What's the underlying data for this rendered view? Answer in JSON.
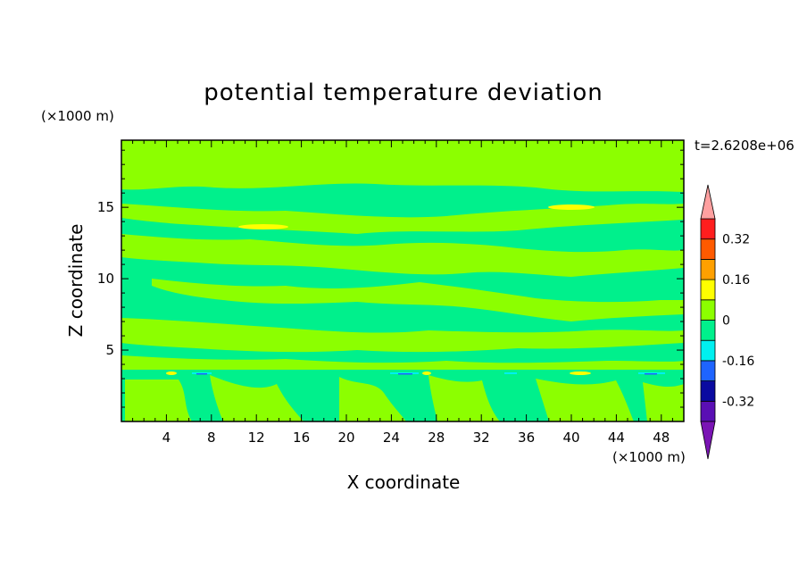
{
  "chart_data": {
    "type": "heatmap",
    "title": "potential temperature deviation",
    "xlabel": "X coordinate",
    "ylabel": "Z coordinate",
    "x_unit": "(×1000 m)",
    "y_unit": "(×1000 m)",
    "time_label": "t=2.6208e+06",
    "xlim": [
      0,
      50
    ],
    "ylim": [
      0,
      19.7
    ],
    "x_ticks": [
      4,
      8,
      12,
      16,
      20,
      24,
      28,
      32,
      36,
      40,
      44,
      48
    ],
    "y_ticks": [
      5,
      10,
      15
    ],
    "background_level": 0,
    "colorbar": {
      "levels": [
        -0.4,
        -0.32,
        -0.24,
        -0.16,
        -0.08,
        0,
        0.08,
        0.16,
        0.24,
        0.32,
        0.4
      ],
      "labels": [
        "0.32",
        "0.16",
        "0",
        "-0.16",
        "-0.32"
      ],
      "label_values": [
        0.32,
        0.16,
        0,
        -0.16,
        -0.32
      ],
      "colors": [
        "#5a0fb4",
        "#0a0aa0",
        "#1e64ff",
        "#00f0f0",
        "#00f08c",
        "#8cff00",
        "#ffff00",
        "#ffa000",
        "#ff5a00",
        "#ff1e1e"
      ],
      "under_color": "#7a14b4",
      "over_color": "#ffa0a0"
    }
  }
}
